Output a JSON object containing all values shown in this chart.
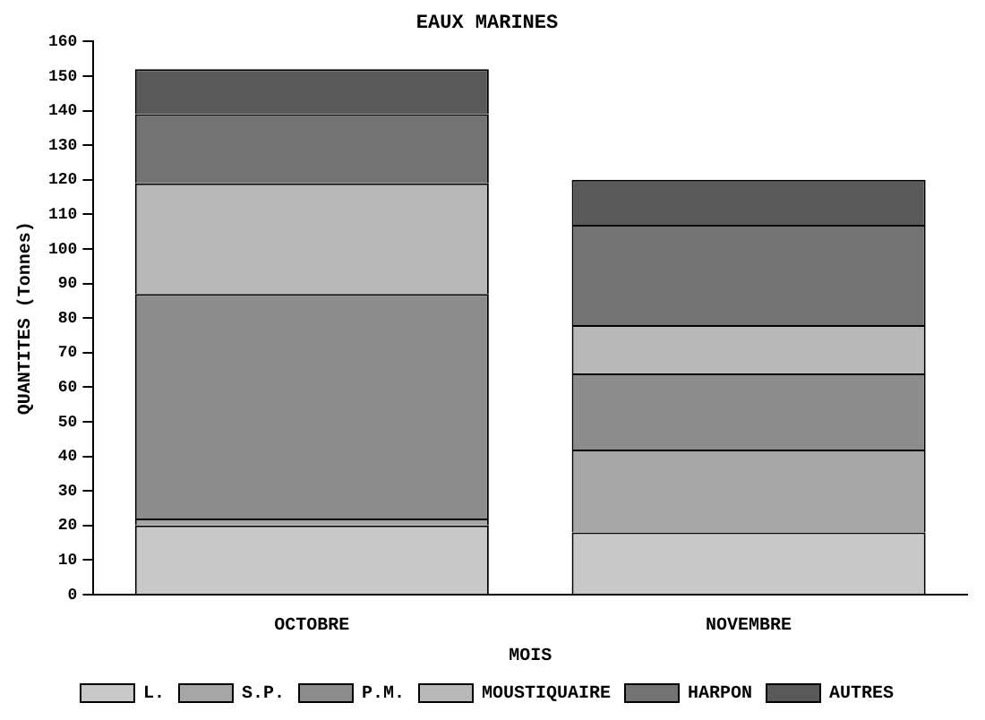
{
  "chart_data": {
    "type": "bar",
    "title": "EAUX MARINES",
    "xlabel": "MOIS",
    "ylabel": "QUANTITES (Tonnes)",
    "categories": [
      "OCTOBRE",
      "NOVEMBRE"
    ],
    "stacked": true,
    "series": [
      {
        "name": "L.",
        "color": "#c8c8c8",
        "values": [
          20,
          18
        ]
      },
      {
        "name": "S.P.",
        "color": "#a6a6a6",
        "values": [
          2,
          24
        ]
      },
      {
        "name": "P.M.",
        "color": "#8c8c8c",
        "values": [
          65,
          22
        ]
      },
      {
        "name": "MOUSTIQUAIRE",
        "color": "#b8b8b8",
        "values": [
          32,
          14
        ]
      },
      {
        "name": "HARPON",
        "color": "#737373",
        "values": [
          20,
          29
        ]
      },
      {
        "name": "AUTRES",
        "color": "#595959",
        "values": [
          13,
          13
        ]
      }
    ],
    "ylim": [
      0,
      160
    ],
    "yticks": [
      0,
      10,
      20,
      30,
      40,
      50,
      60,
      70,
      80,
      90,
      100,
      110,
      120,
      130,
      140,
      150,
      160
    ],
    "grid": false,
    "legend": "bottom"
  }
}
